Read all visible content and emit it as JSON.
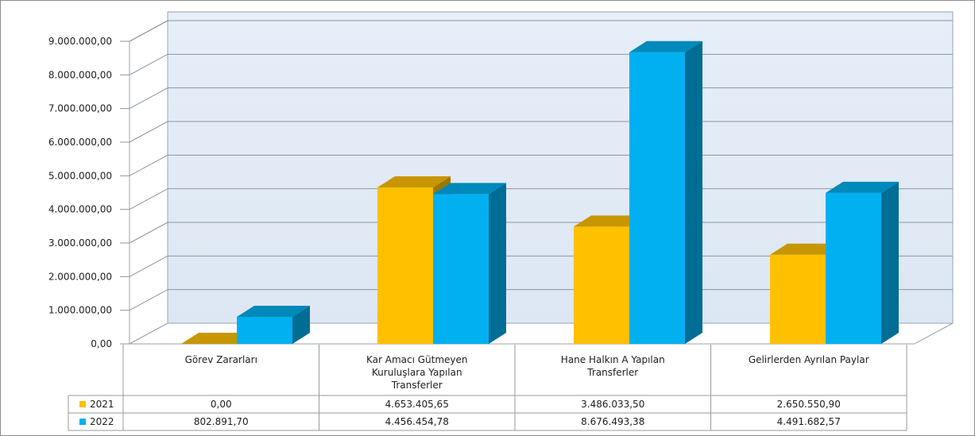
{
  "chart_data": {
    "type": "bar",
    "categories": [
      [
        "Görev Zararları"
      ],
      [
        "Kar Amacı Gütmeyen",
        "Kuruluşlara Yapılan",
        "Transferler"
      ],
      [
        "Hane Halkın A Yapılan",
        "Transferler"
      ],
      [
        "Gelirlerden Ayrılan Paylar"
      ]
    ],
    "series": [
      {
        "name": "2021",
        "color": "#FFC000",
        "values": [
          0,
          4653405.65,
          3486033.5,
          2650550.9
        ],
        "labels": [
          "0,00",
          "4.653.405,65",
          "3.486.033,50",
          "2.650.550,90"
        ]
      },
      {
        "name": "2022",
        "color": "#00B0F0",
        "values": [
          802891.7,
          4456454.78,
          8676493.38,
          4491682.57
        ],
        "labels": [
          "802.891,70",
          "4.456.454,78",
          "8.676.493,38",
          "4.491.682,57"
        ]
      }
    ],
    "yticks": [
      "0,00",
      "1.000.000,00",
      "2.000.000,00",
      "3.000.000,00",
      "4.000.000,00",
      "5.000.000,00",
      "6.000.000,00",
      "7.000.000,00",
      "8.000.000,00",
      "9.000.000,00"
    ],
    "ylim": [
      0,
      9000000
    ],
    "grid": true,
    "legend": "data-table"
  }
}
